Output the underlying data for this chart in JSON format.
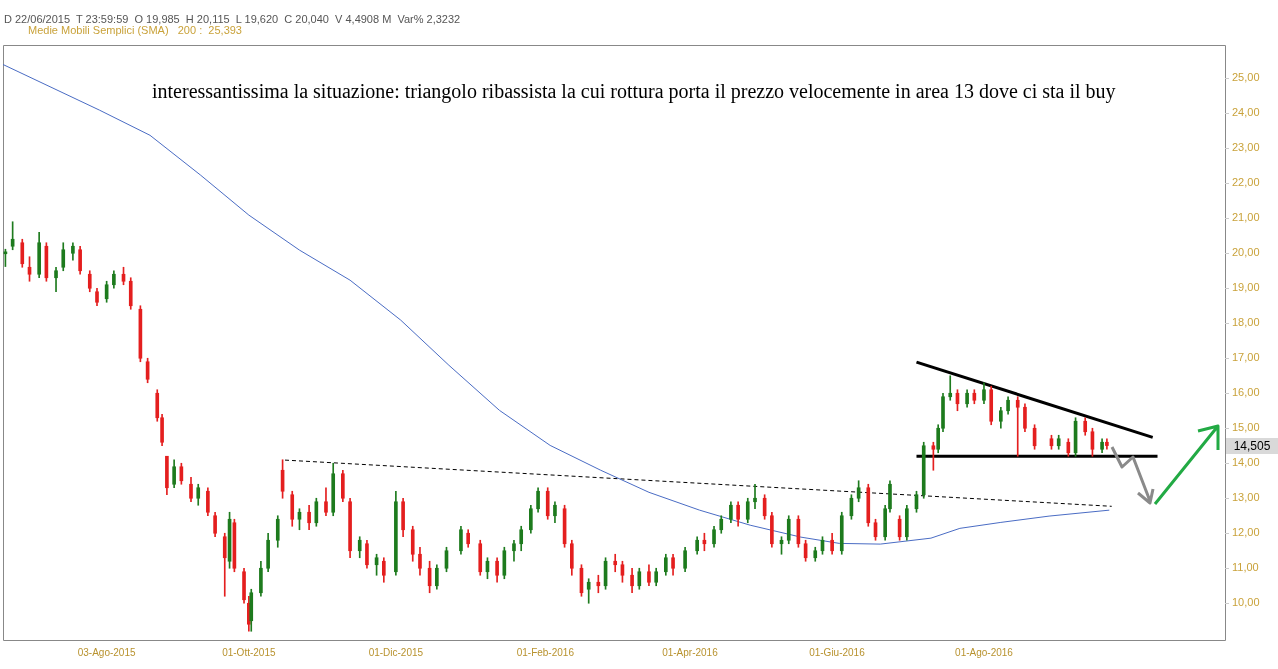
{
  "chart_data": {
    "type": "candlestick",
    "annotations": [
      "D 22/06/2015  T 23:59:59  O 19,985  H 20,115  L 19,620  C 20,040  V 4,4908 M  Var% 2,3232",
      "Medie Mobili Semplici (SMA)   200 :  25,393",
      "interessantissima la situazione: triangolo ribassista la cui rottura porta il prezzo velocemente in area 13 dove ci sta il buy",
      "14,505"
    ],
    "xlim": [
      "2015-06-21",
      "2016-11-09"
    ],
    "xticks": [
      {
        "value": "2015-08-03",
        "label": "03-Ago-2015"
      },
      {
        "value": "2015-10-01",
        "label": "01-Ott-2015"
      },
      {
        "value": "2015-12-01",
        "label": "01-Dic-2015"
      },
      {
        "value": "2016-02-01",
        "label": "01-Feb-2016"
      },
      {
        "value": "2016-04-01",
        "label": "01-Apr-2016"
      },
      {
        "value": "2016-06-01",
        "label": "01-Giu-2016"
      },
      {
        "value": "2016-08-01",
        "label": "01-Ago-2016"
      }
    ],
    "ylim": [
      8.95,
      25.95
    ],
    "yticks": [
      {
        "value": 10,
        "label": "10,00"
      },
      {
        "value": 11,
        "label": "11,00"
      },
      {
        "value": 12,
        "label": "12,00"
      },
      {
        "value": 13,
        "label": "13,00"
      },
      {
        "value": 14,
        "label": "14,00"
      },
      {
        "value": 15,
        "label": "15,00"
      },
      {
        "value": 16,
        "label": "16,00"
      },
      {
        "value": 17,
        "label": "17,00"
      },
      {
        "value": 18,
        "label": "18,00"
      },
      {
        "value": 19,
        "label": "19,00"
      },
      {
        "value": 20,
        "label": "20,00"
      },
      {
        "value": 21,
        "label": "21,00"
      },
      {
        "value": 22,
        "label": "22,00"
      },
      {
        "value": 23,
        "label": "23,00"
      },
      {
        "value": 24,
        "label": "24,00"
      },
      {
        "value": 25,
        "label": "25,00"
      }
    ],
    "legend": false,
    "series": [
      {
        "type": "line",
        "color": "#4a6cc4",
        "marker": "none",
        "line_style": "solid",
        "x": [
          "2015-06-21",
          "2015-07-31",
          "2015-08-21",
          "2015-09-11",
          "2015-10-01",
          "2015-10-22",
          "2015-11-12",
          "2015-12-03",
          "2015-12-23",
          "2016-01-13",
          "2016-02-03",
          "2016-02-24",
          "2016-03-15",
          "2016-04-05",
          "2016-04-26",
          "2016-05-17",
          "2016-06-02",
          "2016-06-19",
          "2016-07-10",
          "2016-07-22",
          "2016-08-08",
          "2016-08-28",
          "2016-09-22"
        ],
        "values": [
          25.393,
          24.09,
          23.37,
          22.23,
          21.09,
          20.09,
          19.23,
          18.09,
          16.8,
          15.51,
          14.51,
          13.8,
          13.17,
          12.66,
          12.23,
          11.89,
          11.71,
          11.69,
          11.86,
          12.14,
          12.31,
          12.49,
          12.66
        ]
      },
      {
        "type": "line",
        "color": "#000000",
        "marker": "none",
        "line_style": "dashed",
        "x": [
          "2015-10-16",
          "2016-09-23"
        ],
        "values": [
          14.09,
          12.77
        ]
      },
      {
        "type": "line",
        "color": "#000000",
        "marker": "none",
        "line_style": "solid",
        "x": [
          "2016-07-04",
          "2016-10-10"
        ],
        "values": [
          16.89,
          14.74
        ]
      },
      {
        "type": "line",
        "color": "#000000",
        "marker": "none",
        "line_style": "solid",
        "x": [
          "2016-07-04",
          "2016-10-12"
        ],
        "values": [
          14.2,
          14.2
        ]
      },
      {
        "color": "#1e7b1e",
        "x": [
          "2015-06-22",
          "2015-06-25",
          "2015-07-06",
          "2015-07-13",
          "2015-07-16",
          "2015-07-20",
          "2015-08-03",
          "2015-08-06",
          "2015-08-31",
          "2015-09-10",
          "2015-09-23",
          "2015-10-02",
          "2015-10-06",
          "2015-10-09",
          "2015-10-13",
          "2015-10-22",
          "2015-10-29",
          "2015-11-05",
          "2015-11-16",
          "2015-11-23",
          "2015-12-01",
          "2015-12-18",
          "2015-12-22",
          "2015-12-28",
          "2016-01-08",
          "2016-01-15",
          "2016-01-19",
          "2016-01-22",
          "2016-01-26",
          "2016-01-29",
          "2016-02-05",
          "2016-02-19",
          "2016-02-26",
          "2016-03-11",
          "2016-03-18",
          "2016-03-22",
          "2016-03-30",
          "2016-04-04",
          "2016-04-11",
          "2016-04-14",
          "2016-04-18",
          "2016-04-25",
          "2016-04-28",
          "2016-05-09",
          "2016-05-12",
          "2016-05-23",
          "2016-05-26",
          "2016-06-03",
          "2016-06-07",
          "2016-06-10",
          "2016-06-21",
          "2016-06-23",
          "2016-06-30",
          "2016-07-04",
          "2016-07-07",
          "2016-07-13",
          "2016-07-15",
          "2016-07-18",
          "2016-07-25",
          "2016-08-01",
          "2016-08-08",
          "2016-08-11",
          "2016-09-01",
          "2016-09-08",
          "2016-09-19"
        ],
        "ohlc": [
          [
            19.985,
            20.115,
            19.62,
            20.04
          ],
          [
            20.2,
            20.9,
            20.1,
            20.4
          ],
          [
            19.4,
            20.6,
            19.3,
            20.3
          ],
          [
            19.3,
            19.6,
            18.9,
            19.5
          ],
          [
            19.6,
            20.3,
            19.5,
            20.1
          ],
          [
            20.0,
            20.3,
            19.8,
            20.2
          ],
          [
            18.7,
            19.2,
            18.6,
            19.1
          ],
          [
            19.1,
            19.5,
            19.0,
            19.4
          ],
          [
            13.4,
            14.1,
            13.3,
            13.9
          ],
          [
            13.0,
            13.4,
            12.8,
            13.3
          ],
          [
            11.2,
            12.6,
            11.0,
            12.4
          ],
          [
            9.5,
            10.4,
            9.2,
            10.3
          ],
          [
            10.3,
            11.2,
            10.2,
            11.0
          ],
          [
            11.0,
            12.0,
            10.9,
            11.8
          ],
          [
            11.8,
            12.5,
            11.6,
            12.4
          ],
          [
            12.4,
            12.7,
            12.1,
            12.6
          ],
          [
            12.3,
            13.0,
            12.2,
            12.9
          ],
          [
            12.6,
            14.0,
            12.5,
            13.7
          ],
          [
            11.5,
            11.9,
            11.3,
            11.8
          ],
          [
            11.1,
            11.4,
            10.8,
            11.3
          ],
          [
            10.9,
            13.2,
            10.8,
            12.9
          ],
          [
            10.5,
            11.1,
            10.4,
            11.0
          ],
          [
            11.0,
            11.6,
            10.9,
            11.5
          ],
          [
            11.5,
            12.2,
            11.4,
            12.1
          ],
          [
            10.9,
            11.3,
            10.7,
            11.2
          ],
          [
            10.8,
            11.6,
            10.7,
            11.5
          ],
          [
            11.5,
            11.8,
            11.2,
            11.7
          ],
          [
            11.7,
            12.2,
            11.5,
            12.1
          ],
          [
            12.1,
            12.8,
            12.0,
            12.7
          ],
          [
            12.7,
            13.3,
            12.6,
            13.2
          ],
          [
            12.5,
            12.9,
            12.3,
            12.8
          ],
          [
            10.4,
            10.7,
            10.0,
            10.6
          ],
          [
            10.5,
            11.3,
            10.4,
            11.2
          ],
          [
            10.5,
            11.0,
            10.4,
            10.9
          ],
          [
            10.6,
            11.0,
            10.5,
            10.9
          ],
          [
            10.9,
            11.4,
            10.8,
            11.3
          ],
          [
            11.0,
            11.6,
            10.9,
            11.5
          ],
          [
            11.5,
            11.9,
            11.4,
            11.8
          ],
          [
            11.7,
            12.2,
            11.6,
            12.1
          ],
          [
            12.1,
            12.5,
            12.0,
            12.4
          ],
          [
            12.4,
            12.9,
            12.3,
            12.8
          ],
          [
            12.4,
            13.0,
            12.3,
            12.9
          ],
          [
            12.9,
            13.4,
            12.7,
            13.0
          ],
          [
            11.7,
            11.9,
            11.4,
            11.8
          ],
          [
            11.8,
            12.5,
            11.7,
            12.4
          ],
          [
            11.3,
            11.6,
            11.2,
            11.5
          ],
          [
            11.5,
            11.9,
            11.4,
            11.8
          ],
          [
            11.5,
            12.6,
            11.4,
            12.5
          ],
          [
            12.5,
            13.1,
            12.4,
            13.0
          ],
          [
            13.0,
            13.5,
            12.9,
            13.3
          ],
          [
            11.9,
            12.8,
            11.8,
            12.7
          ],
          [
            12.7,
            13.5,
            12.6,
            13.4
          ],
          [
            11.9,
            12.8,
            11.8,
            12.7
          ],
          [
            12.7,
            13.2,
            12.6,
            13.1
          ],
          [
            13.1,
            14.6,
            13.0,
            14.5
          ],
          [
            14.4,
            15.1,
            14.3,
            15.0
          ],
          [
            15.0,
            16.0,
            14.9,
            15.9
          ],
          [
            15.9,
            16.5,
            15.8,
            16.0
          ],
          [
            15.7,
            16.1,
            15.6,
            16.0
          ],
          [
            15.8,
            16.3,
            15.7,
            16.1
          ],
          [
            15.2,
            15.6,
            15.0,
            15.5
          ],
          [
            15.5,
            15.9,
            15.4,
            15.8
          ],
          [
            14.5,
            14.8,
            14.4,
            14.7
          ],
          [
            14.3,
            15.3,
            14.2,
            15.2
          ],
          [
            14.4,
            14.7,
            14.3,
            14.6
          ]
        ]
      },
      {
        "color": "#e41f1f",
        "x": [
          "2015-06-29",
          "2015-07-02",
          "2015-07-09",
          "2015-07-23",
          "2015-07-27",
          "2015-07-30",
          "2015-08-10",
          "2015-08-13",
          "2015-08-17",
          "2015-08-20",
          "2015-08-24",
          "2015-08-26",
          "2015-08-28",
          "2015-09-03",
          "2015-09-07",
          "2015-09-14",
          "2015-09-17",
          "2015-09-21",
          "2015-09-25",
          "2015-09-29",
          "2015-10-01",
          "2015-10-15",
          "2015-10-19",
          "2015-10-26",
          "2015-11-02",
          "2015-11-09",
          "2015-11-12",
          "2015-11-19",
          "2015-11-26",
          "2015-12-04",
          "2015-12-08",
          "2015-12-11",
          "2015-12-15",
          "2015-12-31",
          "2016-01-05",
          "2016-01-12",
          "2016-02-02",
          "2016-02-09",
          "2016-02-12",
          "2016-02-16",
          "2016-02-23",
          "2016-03-01",
          "2016-03-04",
          "2016-03-08",
          "2016-03-15",
          "2016-03-25",
          "2016-04-07",
          "2016-04-21",
          "2016-05-02",
          "2016-05-05",
          "2016-05-16",
          "2016-05-19",
          "2016-05-30",
          "2016-06-14",
          "2016-06-17",
          "2016-06-27",
          "2016-07-11",
          "2016-07-21",
          "2016-07-28",
          "2016-08-04",
          "2016-08-15",
          "2016-08-18",
          "2016-08-22",
          "2016-08-29",
          "2016-09-05",
          "2016-09-12",
          "2016-09-15",
          "2016-09-21"
        ],
        "ohlc": [
          [
            20.3,
            20.4,
            19.6,
            19.7
          ],
          [
            19.6,
            19.9,
            19.2,
            19.4
          ],
          [
            20.2,
            20.3,
            19.2,
            19.3
          ],
          [
            20.1,
            20.2,
            19.4,
            19.5
          ],
          [
            19.4,
            19.5,
            18.9,
            19.0
          ],
          [
            18.9,
            19.0,
            18.5,
            18.6
          ],
          [
            19.4,
            19.6,
            19.1,
            19.2
          ],
          [
            19.2,
            19.3,
            18.4,
            18.5
          ],
          [
            18.4,
            18.5,
            16.9,
            17.0
          ],
          [
            16.9,
            17.0,
            16.3,
            16.4
          ],
          [
            16.0,
            16.1,
            15.2,
            15.3
          ],
          [
            15.3,
            15.4,
            14.5,
            14.6
          ],
          [
            14.2,
            14.2,
            13.1,
            13.3
          ],
          [
            13.9,
            14.0,
            13.4,
            13.5
          ],
          [
            13.4,
            13.6,
            12.9,
            13.0
          ],
          [
            13.2,
            13.3,
            12.5,
            12.6
          ],
          [
            12.5,
            12.6,
            11.9,
            12.0
          ],
          [
            11.9,
            12.0,
            10.2,
            11.3
          ],
          [
            12.3,
            12.4,
            10.9,
            11.0
          ],
          [
            10.9,
            11.0,
            10.0,
            10.1
          ],
          [
            10.0,
            10.2,
            9.2,
            9.4
          ],
          [
            13.8,
            14.1,
            13.0,
            13.2
          ],
          [
            13.1,
            13.2,
            12.2,
            12.4
          ],
          [
            12.6,
            12.8,
            12.1,
            12.3
          ],
          [
            12.9,
            13.3,
            12.5,
            12.6
          ],
          [
            13.7,
            13.8,
            12.9,
            13.0
          ],
          [
            12.9,
            13.0,
            11.3,
            11.5
          ],
          [
            11.7,
            11.8,
            11.0,
            11.1
          ],
          [
            11.2,
            11.3,
            10.6,
            10.8
          ],
          [
            12.9,
            13.0,
            11.9,
            12.1
          ],
          [
            12.1,
            12.2,
            11.2,
            11.4
          ],
          [
            11.4,
            11.6,
            10.8,
            11.0
          ],
          [
            11.0,
            11.2,
            10.3,
            10.5
          ],
          [
            12.0,
            12.1,
            11.6,
            11.7
          ],
          [
            11.7,
            11.8,
            10.8,
            10.9
          ],
          [
            11.2,
            11.3,
            10.6,
            10.8
          ],
          [
            13.2,
            13.3,
            12.4,
            12.5
          ],
          [
            12.7,
            12.8,
            11.6,
            11.7
          ],
          [
            11.7,
            11.8,
            10.8,
            11.0
          ],
          [
            11.0,
            11.1,
            10.2,
            10.3
          ],
          [
            10.6,
            10.8,
            10.3,
            10.5
          ],
          [
            11.2,
            11.4,
            10.9,
            11.1
          ],
          [
            11.1,
            11.2,
            10.6,
            10.8
          ],
          [
            10.8,
            11.0,
            10.3,
            10.5
          ],
          [
            10.9,
            11.1,
            10.5,
            10.6
          ],
          [
            11.3,
            11.4,
            10.8,
            11.0
          ],
          [
            11.8,
            12.0,
            11.5,
            11.7
          ],
          [
            12.8,
            12.9,
            12.2,
            12.4
          ],
          [
            13.0,
            13.1,
            12.4,
            12.5
          ],
          [
            12.5,
            12.6,
            11.6,
            11.7
          ],
          [
            12.4,
            12.5,
            11.6,
            11.7
          ],
          [
            11.7,
            11.8,
            11.2,
            11.3
          ],
          [
            11.8,
            12.0,
            11.4,
            11.5
          ],
          [
            13.3,
            13.4,
            12.2,
            12.3
          ],
          [
            12.3,
            12.4,
            11.8,
            11.9
          ],
          [
            12.4,
            12.5,
            11.8,
            11.9
          ],
          [
            14.5,
            14.6,
            13.8,
            14.4
          ],
          [
            16.0,
            16.1,
            15.5,
            15.7
          ],
          [
            16.0,
            16.1,
            15.7,
            15.8
          ],
          [
            16.1,
            16.2,
            15.1,
            15.2
          ],
          [
            15.8,
            15.9,
            14.2,
            15.6
          ],
          [
            15.6,
            15.7,
            14.9,
            15.0
          ],
          [
            15.0,
            15.1,
            14.4,
            14.5
          ],
          [
            14.7,
            14.8,
            14.4,
            14.5
          ],
          [
            14.6,
            14.7,
            14.2,
            14.3
          ],
          [
            15.2,
            15.3,
            14.8,
            14.9
          ],
          [
            14.9,
            15.0,
            14.2,
            14.4
          ],
          [
            14.6,
            14.7,
            14.4,
            14.505
          ]
        ]
      }
    ]
  }
}
